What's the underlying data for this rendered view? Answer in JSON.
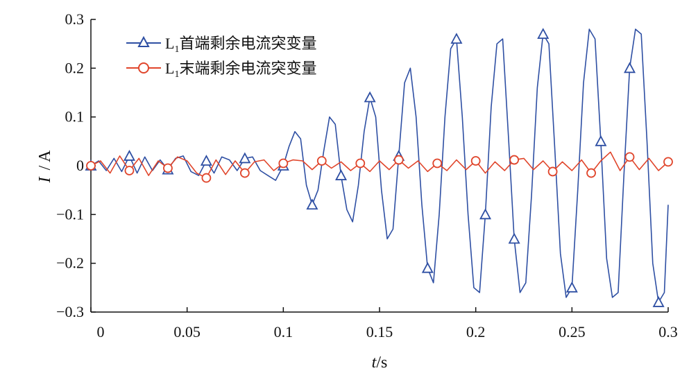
{
  "chart_data": {
    "type": "line",
    "title": "",
    "xlabel": {
      "var": "t",
      "unit": "s"
    },
    "ylabel": {
      "var": "I",
      "unit": "A"
    },
    "xlim": [
      0,
      0.3
    ],
    "ylim": [
      -0.3,
      0.3
    ],
    "x_ticks": [
      "0",
      "0.05",
      "0.1",
      "0.15",
      "0.2",
      "0.25",
      "0.3"
    ],
    "y_ticks": [
      "0.3",
      "0.2",
      "0.1",
      "0",
      "−0.1",
      "−0.2",
      "−0.3"
    ],
    "grid": false,
    "legend_position": "top-left",
    "series": [
      {
        "name": "L1首端剩余电流突变量",
        "name_main": "L",
        "name_sub": "1",
        "name_rest": "首端剩余电流突变量",
        "color": "#2e4fa3",
        "marker": "triangle",
        "x": [
          0,
          0.004,
          0.008,
          0.012,
          0.016,
          0.02,
          0.024,
          0.028,
          0.032,
          0.036,
          0.04,
          0.044,
          0.048,
          0.052,
          0.056,
          0.06,
          0.064,
          0.068,
          0.072,
          0.076,
          0.08,
          0.084,
          0.088,
          0.092,
          0.096,
          0.1,
          0.103,
          0.106,
          0.109,
          0.112,
          0.115,
          0.118,
          0.121,
          0.124,
          0.127,
          0.13,
          0.133,
          0.136,
          0.139,
          0.142,
          0.145,
          0.148,
          0.151,
          0.154,
          0.157,
          0.16,
          0.163,
          0.166,
          0.169,
          0.172,
          0.175,
          0.178,
          0.181,
          0.184,
          0.187,
          0.19,
          0.193,
          0.196,
          0.199,
          0.202,
          0.205,
          0.208,
          0.211,
          0.214,
          0.217,
          0.22,
          0.223,
          0.226,
          0.229,
          0.232,
          0.235,
          0.238,
          0.241,
          0.244,
          0.247,
          0.25,
          0.253,
          0.256,
          0.259,
          0.262,
          0.265,
          0.268,
          0.271,
          0.274,
          0.277,
          0.28,
          0.283,
          0.286,
          0.289,
          0.292,
          0.295,
          0.298,
          0.3
        ],
        "values": [
          0,
          0.01,
          -0.01,
          0.015,
          -0.012,
          0.02,
          -0.015,
          0.018,
          -0.01,
          0.012,
          -0.008,
          0.015,
          0.02,
          -0.012,
          -0.02,
          0.01,
          -0.015,
          0.018,
          0.012,
          -0.01,
          0.015,
          0.018,
          -0.01,
          -0.02,
          -0.03,
          0.0,
          0.04,
          0.07,
          0.055,
          -0.04,
          -0.08,
          -0.05,
          0.03,
          0.1,
          0.085,
          -0.02,
          -0.09,
          -0.115,
          -0.04,
          0.07,
          0.14,
          0.1,
          -0.05,
          -0.15,
          -0.13,
          0.02,
          0.17,
          0.2,
          0.1,
          -0.08,
          -0.21,
          -0.24,
          -0.1,
          0.1,
          0.24,
          0.26,
          0.1,
          -0.1,
          -0.25,
          -0.26,
          -0.1,
          0.12,
          0.25,
          0.26,
          0.06,
          -0.15,
          -0.26,
          -0.24,
          -0.06,
          0.16,
          0.27,
          0.25,
          0.04,
          -0.18,
          -0.27,
          -0.25,
          -0.05,
          0.17,
          0.28,
          0.26,
          0.05,
          -0.19,
          -0.27,
          -0.26,
          -0.02,
          0.2,
          0.28,
          0.27,
          0.05,
          -0.2,
          -0.28,
          -0.26,
          -0.08
        ]
      },
      {
        "name": "L1末端剩余电流突变量",
        "name_main": "L",
        "name_sub": "1",
        "name_rest": "末端剩余电流突变量",
        "color": "#e0452b",
        "marker": "circle",
        "x": [
          0,
          0.005,
          0.01,
          0.015,
          0.02,
          0.025,
          0.03,
          0.035,
          0.04,
          0.045,
          0.05,
          0.055,
          0.06,
          0.065,
          0.07,
          0.075,
          0.08,
          0.085,
          0.09,
          0.095,
          0.1,
          0.105,
          0.11,
          0.115,
          0.12,
          0.125,
          0.13,
          0.135,
          0.14,
          0.145,
          0.15,
          0.155,
          0.16,
          0.165,
          0.17,
          0.175,
          0.18,
          0.185,
          0.19,
          0.195,
          0.2,
          0.205,
          0.21,
          0.215,
          0.22,
          0.225,
          0.23,
          0.235,
          0.24,
          0.245,
          0.25,
          0.255,
          0.26,
          0.265,
          0.27,
          0.275,
          0.28,
          0.285,
          0.29,
          0.295,
          0.3
        ],
        "values": [
          0.0,
          0.01,
          -0.015,
          0.02,
          -0.01,
          0.015,
          -0.02,
          0.01,
          -0.005,
          0.018,
          0.01,
          -0.015,
          -0.025,
          0.012,
          -0.018,
          0.01,
          -0.015,
          0.008,
          0.012,
          -0.01,
          0.005,
          0.012,
          0.01,
          -0.008,
          0.01,
          -0.005,
          0.008,
          -0.01,
          0.005,
          -0.012,
          0.01,
          -0.008,
          0.012,
          -0.005,
          0.01,
          -0.012,
          0.005,
          -0.01,
          0.012,
          -0.008,
          0.01,
          -0.015,
          0.008,
          -0.01,
          0.012,
          0.015,
          -0.008,
          0.01,
          -0.012,
          0.008,
          -0.01,
          0.012,
          -0.015,
          0.01,
          0.028,
          -0.01,
          0.018,
          -0.008,
          0.015,
          -0.01,
          0.008
        ]
      }
    ]
  }
}
